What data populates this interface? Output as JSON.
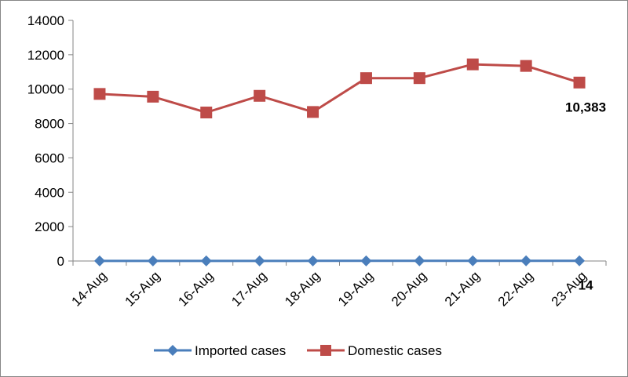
{
  "chart_data": {
    "type": "line",
    "title": "",
    "xlabel": "",
    "ylabel": "",
    "categories": [
      "14-Aug",
      "15-Aug",
      "16-Aug",
      "17-Aug",
      "18-Aug",
      "19-Aug",
      "20-Aug",
      "21-Aug",
      "22-Aug",
      "23-Aug"
    ],
    "ylim": [
      0,
      14000
    ],
    "yticks": [
      0,
      2000,
      4000,
      6000,
      8000,
      10000,
      12000,
      14000
    ],
    "grid": false,
    "legend_position": "bottom",
    "series": [
      {
        "name": "Imported cases",
        "color": "#4a7ebb",
        "marker": "diamond",
        "values": [
          5,
          6,
          5,
          4,
          7,
          8,
          9,
          11,
          10,
          14
        ]
      },
      {
        "name": "Domestic cases",
        "color": "#be4b48",
        "marker": "square",
        "values": [
          9720,
          9560,
          8640,
          9610,
          8670,
          10640,
          10640,
          11440,
          11350,
          10383
        ]
      }
    ],
    "data_labels": [
      {
        "series": "Domestic cases",
        "category": "23-Aug",
        "text": "10,383"
      },
      {
        "series": "Imported cases",
        "category": "23-Aug",
        "text": "14"
      }
    ]
  }
}
